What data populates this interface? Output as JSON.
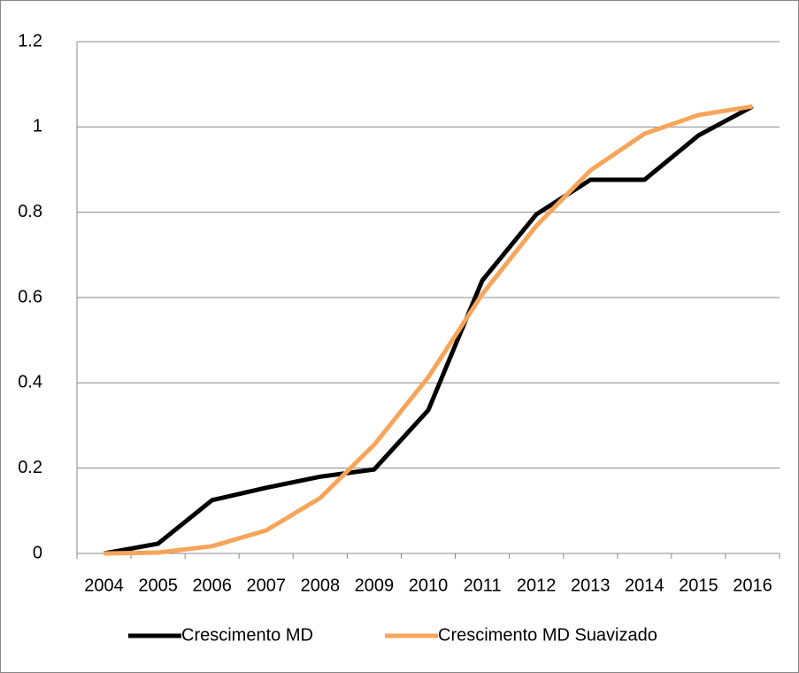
{
  "chart_data": {
    "type": "line",
    "categories": [
      "2004",
      "2005",
      "2006",
      "2007",
      "2008",
      "2009",
      "2010",
      "2011",
      "2012",
      "2013",
      "2014",
      "2015",
      "2016"
    ],
    "series": [
      {
        "name": "Crescimento MD",
        "color": "#000000",
        "values": [
          0,
          0.023,
          0.125,
          0.154,
          0.18,
          0.197,
          0.336,
          0.64,
          0.795,
          0.876,
          0.876,
          0.98,
          1.048
        ]
      },
      {
        "name": "Crescimento MD Suavizado",
        "color": "#f6a55a",
        "values": [
          0,
          0.002,
          0.017,
          0.054,
          0.13,
          0.255,
          0.413,
          0.608,
          0.768,
          0.898,
          0.984,
          1.028,
          1.048
        ]
      }
    ],
    "ylim": [
      0,
      1.2
    ],
    "yticks": [
      0,
      0.2,
      0.4,
      0.6,
      0.8,
      1,
      1.2
    ],
    "grid": true,
    "legend": "bottom"
  }
}
